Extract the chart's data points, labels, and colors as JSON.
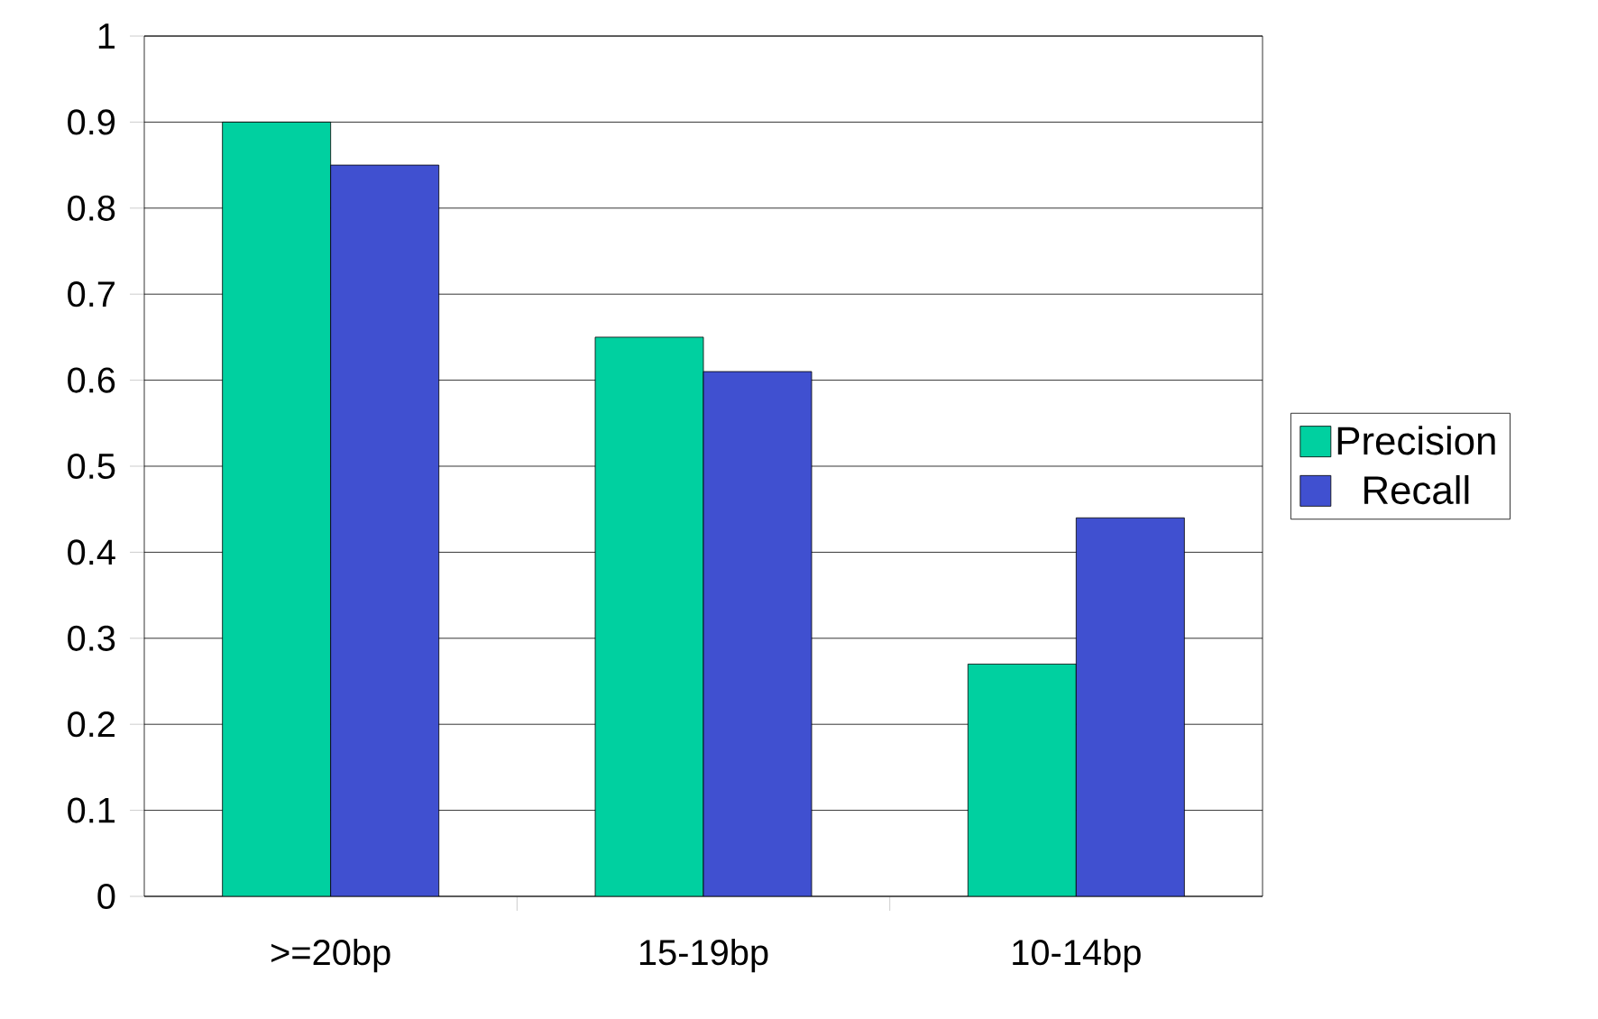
{
  "chart_data": {
    "type": "bar",
    "categories": [
      ">=20bp",
      "15-19bp",
      "10-14bp"
    ],
    "series": [
      {
        "name": "Precision",
        "color": "#00d0a0",
        "values": [
          0.9,
          0.65,
          0.27
        ]
      },
      {
        "name": "Recall",
        "color": "#4050d0",
        "values": [
          0.85,
          0.61,
          0.44
        ]
      }
    ],
    "ylim": [
      0,
      1
    ],
    "yticks": [
      0,
      0.1,
      0.2,
      0.3,
      0.4,
      0.5,
      0.6,
      0.7,
      0.8,
      0.9,
      1
    ],
    "grid": "y",
    "legend": "right"
  }
}
